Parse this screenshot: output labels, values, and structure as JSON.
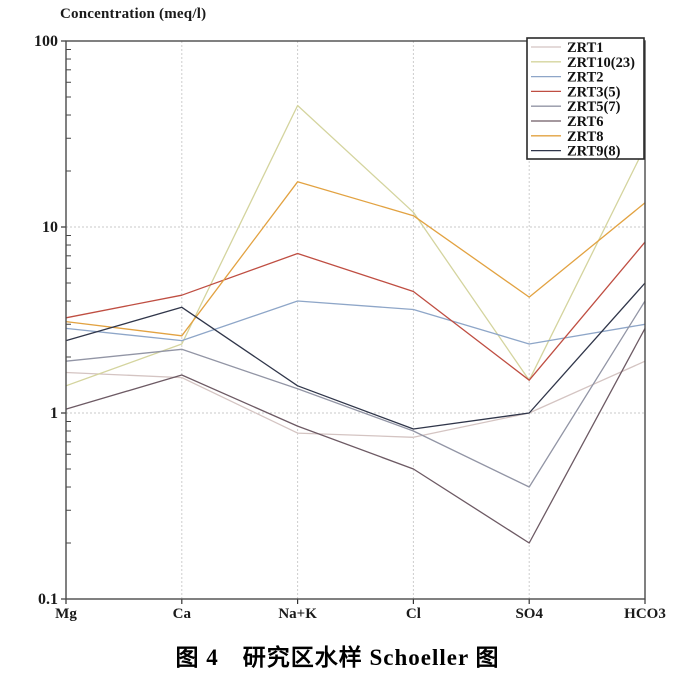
{
  "page": {
    "title": "Concentration (meq/l)",
    "caption": "图 4　研究区水样 Schoeller 图"
  },
  "chart_data": {
    "type": "line",
    "title": "Concentration (meq/l)",
    "x_categories": [
      "Mg",
      "Ca",
      "Na+K",
      "Cl",
      "SO4",
      "HCO3"
    ],
    "y_scale": "log",
    "y_ticks": [
      "100",
      "10",
      "1",
      "0.1"
    ],
    "y_range": [
      0.1,
      100
    ],
    "grid": {
      "h_lines": [
        10,
        1
      ],
      "v_lines": true
    },
    "legend_position": "top-right",
    "series": [
      {
        "name": "ZRT1",
        "color": "#d4c4c2",
        "values": [
          1.65,
          1.55,
          0.78,
          0.74,
          1.0,
          1.9
        ]
      },
      {
        "name": "ZRT10(23)",
        "color": "#d4d49e",
        "values": [
          1.4,
          2.35,
          45,
          12,
          1.5,
          27
        ]
      },
      {
        "name": "ZRT2",
        "color": "#8ea6c8",
        "values": [
          2.85,
          2.45,
          4.0,
          3.6,
          2.35,
          3.0
        ]
      },
      {
        "name": "ZRT3(5)",
        "color": "#bf4e42",
        "values": [
          3.25,
          4.3,
          7.2,
          4.5,
          1.5,
          8.3
        ]
      },
      {
        "name": "ZRT5(7)",
        "color": "#9295a5",
        "values": [
          1.9,
          2.2,
          1.35,
          0.8,
          0.4,
          4.0
        ]
      },
      {
        "name": "ZRT6",
        "color": "#6d5a64",
        "values": [
          1.05,
          1.6,
          0.85,
          0.5,
          0.2,
          2.85
        ]
      },
      {
        "name": "ZRT8",
        "color": "#e2a241",
        "values": [
          3.1,
          2.6,
          17.5,
          11.5,
          4.2,
          13.5
        ]
      },
      {
        "name": "ZRT9(8)",
        "color": "#30364a",
        "values": [
          2.45,
          3.7,
          1.4,
          0.82,
          1.0,
          5.0
        ]
      }
    ]
  }
}
